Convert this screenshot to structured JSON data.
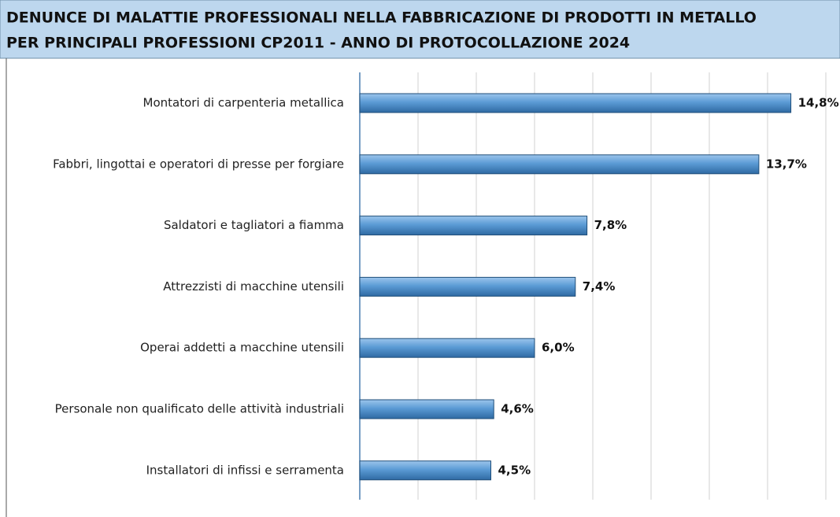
{
  "chart_data": {
    "type": "hbar",
    "title": [
      "DENUNCE DI MALATTIE PROFESSIONALI NELLA FABBRICAZIONE DI PRODOTTI IN METALLO",
      "PER PRINCIPALI PROFESSIONI CP2011 - ANNO DI PROTOCOLLAZIONE 2024"
    ],
    "categories": [
      "Montatori di carpenteria metallica",
      "Fabbri, lingottai e operatori di presse per forgiare",
      "Saldatori e tagliatori a fiamma",
      "Attrezzisti di macchine utensili",
      "Operai addetti a macchine utensili",
      "Personale non qualificato delle attività industriali",
      "Installatori di infissi e serramenta"
    ],
    "values": [
      14.8,
      13.7,
      7.8,
      7.4,
      6.0,
      4.6,
      4.5
    ],
    "value_labels": [
      "14,8%",
      "13,7%",
      "7,8%",
      "7,4%",
      "6,0%",
      "4,6%",
      "4,5%"
    ],
    "color": "#5b9bd5",
    "xlim": [
      0,
      16
    ],
    "xticks": [
      0,
      2,
      4,
      6,
      8,
      10,
      12,
      14,
      16
    ],
    "grid": true
  }
}
